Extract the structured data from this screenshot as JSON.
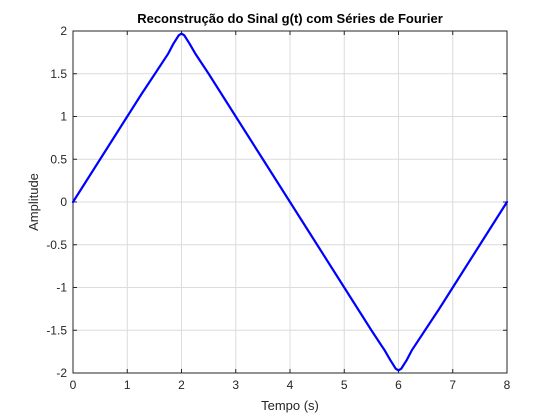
{
  "chart_data": {
    "type": "line",
    "title": "Reconstrução do Sinal g(t) com Séries de Fourier",
    "xlabel": "Tempo (s)",
    "ylabel": "Amplitude",
    "xlim": [
      0,
      8
    ],
    "ylim": [
      -2,
      2
    ],
    "x_ticks": [
      0,
      1,
      2,
      3,
      4,
      5,
      6,
      7,
      8
    ],
    "x_tick_labels": [
      "0",
      "1",
      "2",
      "3",
      "4",
      "5",
      "6",
      "7",
      "8"
    ],
    "y_ticks": [
      -2,
      -1.5,
      -1,
      -0.5,
      0,
      0.5,
      1,
      1.5,
      2
    ],
    "y_tick_labels": [
      "-2",
      "-1.5",
      "-1",
      "-0.5",
      "0",
      "0.5",
      "1",
      "1.5",
      "2"
    ],
    "grid": true,
    "line_color": "#0000ff",
    "series": [
      {
        "x": [
          0,
          0.25,
          0.5,
          0.75,
          1,
          1.25,
          1.5,
          1.75,
          1.85,
          1.95,
          2,
          2.05,
          2.15,
          2.25,
          2.5,
          2.75,
          3,
          3.25,
          3.5,
          3.75,
          4,
          4.25,
          4.5,
          4.75,
          5,
          5.25,
          5.5,
          5.75,
          5.85,
          5.95,
          6,
          6.05,
          6.15,
          6.25,
          6.5,
          6.75,
          7,
          7.25,
          7.5,
          7.75,
          8
        ],
        "y": [
          0,
          0.25,
          0.5,
          0.75,
          1,
          1.25,
          1.49,
          1.73,
          1.85,
          1.95,
          1.97,
          1.95,
          1.85,
          1.74,
          1.5,
          1.25,
          1,
          0.75,
          0.5,
          0.25,
          0,
          -0.25,
          -0.5,
          -0.75,
          -1,
          -1.25,
          -1.5,
          -1.74,
          -1.85,
          -1.95,
          -1.97,
          -1.95,
          -1.85,
          -1.73,
          -1.49,
          -1.25,
          -1,
          -0.75,
          -0.5,
          -0.25,
          0
        ]
      }
    ]
  }
}
